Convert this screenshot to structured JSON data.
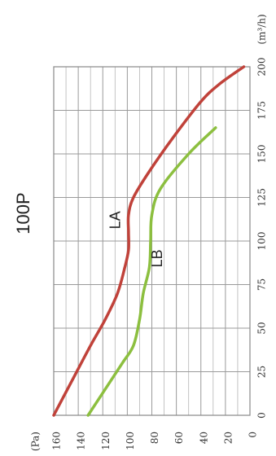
{
  "chart_data": {
    "type": "line",
    "title": "100P",
    "xlabel": "(m³/h)",
    "ylabel": "(Pa)",
    "xlim": [
      0,
      200
    ],
    "ylim": [
      0,
      160
    ],
    "x_ticks": [
      "0",
      "25",
      "50",
      "75",
      "100",
      "125",
      "150",
      "175",
      "200"
    ],
    "y_ticks": [
      "0",
      "20",
      "40",
      "60",
      "80",
      "100",
      "120",
      "140",
      "160"
    ],
    "grid": true,
    "orientation": "rotated-90-ccw",
    "series": [
      {
        "name": "LA",
        "color": "#c0423a",
        "x": [
          0,
          20,
          40,
          55,
          70,
          85,
          95,
          105,
          115,
          125,
          140,
          160,
          180,
          190,
          200
        ],
        "y": [
          160,
          145,
          130,
          118,
          108,
          102,
          99,
          99,
          99,
          95,
          82,
          62,
          40,
          25,
          5
        ]
      },
      {
        "name": "LB",
        "color": "#8cbf3f",
        "x": [
          0,
          15,
          30,
          40,
          55,
          70,
          85,
          100,
          115,
          130,
          150,
          165
        ],
        "y": [
          132,
          118,
          104,
          95,
          90,
          87,
          82,
          81,
          80,
          73,
          50,
          28
        ]
      }
    ]
  }
}
